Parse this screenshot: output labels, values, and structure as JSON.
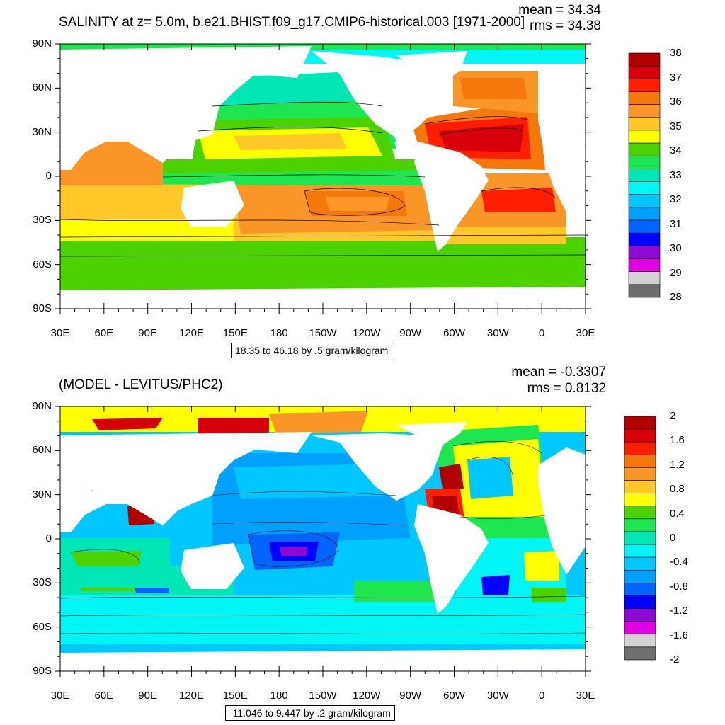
{
  "panel1": {
    "title": "SALINITY at z=   5.0m, b.e21.BHIST.f09_g17.CMIP6-historical.003 [1971-2000]",
    "mean": "mean = 34.34",
    "rms": "rms = 34.38",
    "range_label": "18.35 to 46.18 by .5 gram/kilogram",
    "colorbar": {
      "labels": [
        "38",
        "37",
        "36",
        "35",
        "34",
        "33",
        "32",
        "31",
        "30",
        "29",
        "28"
      ],
      "colors": [
        "#b20000",
        "#d7000a",
        "#ff1e00",
        "#f5780a",
        "#fa9628",
        "#ffc828",
        "#ffff00",
        "#4bd200",
        "#1ee650",
        "#00e6b4",
        "#00f5f5",
        "#00c8ff",
        "#00a0ff",
        "#0064ff",
        "#0000ff",
        "#8c0ad2",
        "#e100e1",
        "#d2d2d2",
        "#6e6e6e"
      ]
    }
  },
  "panel2": {
    "title": "(MODEL - LEVITUS/PHC2)",
    "mean": "mean = -0.3307",
    "rms": "rms = 0.8132",
    "range_label": "-11.046 to 9.447 by .2 gram/kilogram",
    "colorbar": {
      "labels": [
        "2",
        "1.6",
        "1.2",
        "0.8",
        "0.4",
        "0",
        "-0.4",
        "-0.8",
        "-1.2",
        "-1.6",
        "-2"
      ],
      "colors": [
        "#b20000",
        "#d7000a",
        "#ff1e00",
        "#f5780a",
        "#fa9628",
        "#ffc828",
        "#ffff00",
        "#4bd200",
        "#1ee650",
        "#00e6b4",
        "#00f5f5",
        "#00c8ff",
        "#00a0ff",
        "#0064ff",
        "#0000ff",
        "#8c0ad2",
        "#e100e1",
        "#d2d2d2",
        "#6e6e6e"
      ]
    }
  },
  "axes": {
    "lon_labels": [
      "30E",
      "60E",
      "90E",
      "120E",
      "150E",
      "180",
      "150W",
      "120W",
      "90W",
      "60W",
      "30W",
      "0",
      "30E"
    ],
    "lat_labels": [
      "90N",
      "60N",
      "30N",
      "0",
      "30S",
      "60S",
      "90S"
    ]
  }
}
